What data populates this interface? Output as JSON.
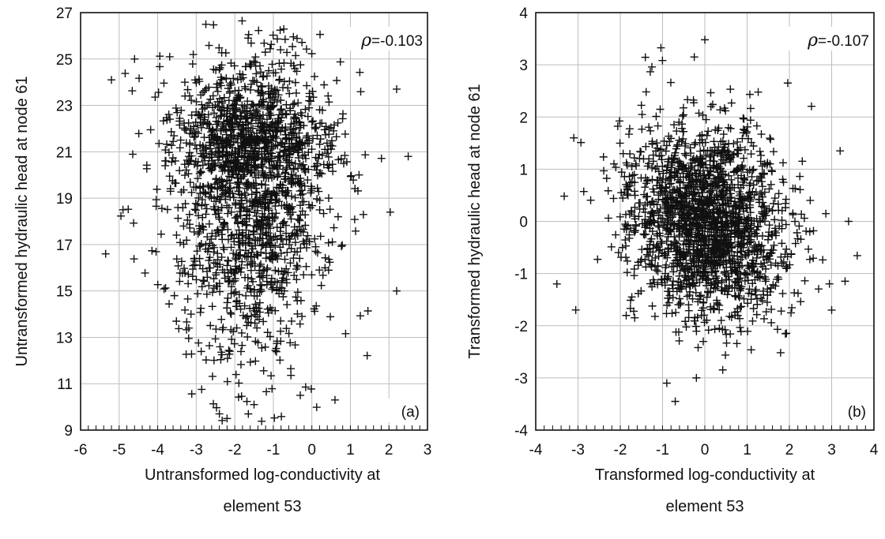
{
  "chart_data": [
    {
      "id": "a",
      "type": "scatter",
      "marker": "plus",
      "panel_label": "(a)",
      "correlation_symbol": "ρ",
      "correlation_value": "=-0.103",
      "xlabel_line1": "Untransformed log-conductivity at",
      "xlabel_line2": "element 53",
      "ylabel": "Untransformed hydraulic head at node 61",
      "xlim": [
        -6,
        3
      ],
      "ylim": [
        9,
        27
      ],
      "xticks": [
        "-6",
        "-5",
        "-4",
        "-3",
        "-2",
        "-1",
        "0",
        "1",
        "2",
        "3"
      ],
      "yticks": [
        "9",
        "11",
        "13",
        "15",
        "17",
        "19",
        "21",
        "23",
        "25",
        "27"
      ],
      "grid": true,
      "n_points": 1900,
      "distribution": {
        "mean_x": -1.6,
        "sd_x": 1.05,
        "mean_y": 20.3,
        "sd_y": 3.1,
        "skew_y": "left (tail toward low head)"
      },
      "notable_points": [
        [
          -5.35,
          16.6
        ],
        [
          -4.9,
          18.5
        ],
        [
          -5.2,
          24.1
        ],
        [
          -4.6,
          25.0
        ],
        [
          2.5,
          20.8
        ],
        [
          2.2,
          23.7
        ],
        [
          2.2,
          15.0
        ],
        [
          -2.4,
          9.7
        ],
        [
          -2.2,
          9.5
        ],
        [
          -0.3,
          10.5
        ],
        [
          0.6,
          10.3
        ],
        [
          -1.5,
          10.1
        ]
      ],
      "outline": [
        [
          -5.4,
          24.6
        ],
        [
          -3.2,
          25.6
        ],
        [
          -1.0,
          25.7
        ],
        [
          0.8,
          25.5
        ],
        [
          1.8,
          23.2
        ],
        [
          2.6,
          20.8
        ],
        [
          2.1,
          17.0
        ],
        [
          1.3,
          12.6
        ],
        [
          -0.2,
          10.2
        ],
        [
          -2.3,
          9.4
        ],
        [
          -3.0,
          11.7
        ],
        [
          -3.9,
          13.8
        ],
        [
          -5.4,
          16.6
        ],
        [
          -5.2,
          20.5
        ]
      ]
    },
    {
      "id": "b",
      "type": "scatter",
      "marker": "plus",
      "panel_label": "(b)",
      "correlation_symbol": "ρ",
      "correlation_value": "=-0.107",
      "xlabel_line1": "Transformed log-conductivity at",
      "xlabel_line2": "element 53",
      "ylabel": "Transformed hydraulic head at node 61",
      "xlim": [
        -4,
        4
      ],
      "ylim": [
        -4,
        4
      ],
      "xticks": [
        "-4",
        "-3",
        "-2",
        "-1",
        "0",
        "1",
        "2",
        "3",
        "4"
      ],
      "yticks": [
        "-4",
        "-3",
        "-2",
        "-1",
        "0",
        "1",
        "2",
        "3",
        "4"
      ],
      "grid": true,
      "n_points": 1900,
      "distribution": {
        "mean_x": 0.0,
        "sd_x": 0.95,
        "mean_y": 0.0,
        "sd_y": 0.95,
        "correlation": -0.107
      },
      "notable_points": [
        [
          -3.5,
          -1.2
        ],
        [
          3.4,
          0.0
        ],
        [
          3.2,
          1.35
        ],
        [
          3.0,
          -1.7
        ],
        [
          -3.1,
          1.6
        ],
        [
          -0.9,
          -3.1
        ],
        [
          -0.7,
          -3.45
        ],
        [
          0.0,
          3.48
        ],
        [
          -0.25,
          3.15
        ],
        [
          -0.2,
          -3.0
        ]
      ],
      "outline": [
        [
          -3.3,
          1.7
        ],
        [
          -1.3,
          2.6
        ],
        [
          0.0,
          3.5
        ],
        [
          1.0,
          2.7
        ],
        [
          2.1,
          1.7
        ],
        [
          3.2,
          1.4
        ],
        [
          3.4,
          0.0
        ],
        [
          3.0,
          -1.7
        ],
        [
          1.6,
          -2.9
        ],
        [
          -0.7,
          -3.45
        ],
        [
          -1.9,
          -2.4
        ],
        [
          -3.5,
          -1.2
        ],
        [
          -3.0,
          -0.7
        ]
      ]
    }
  ]
}
